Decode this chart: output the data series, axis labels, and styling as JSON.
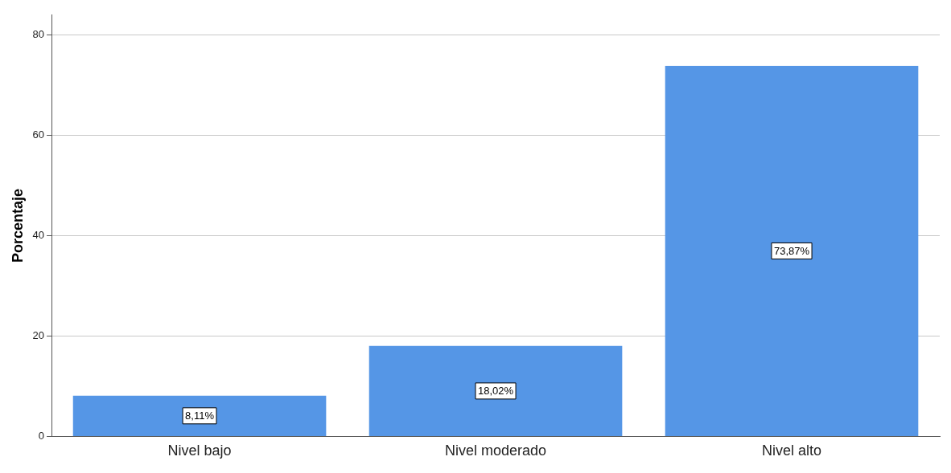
{
  "chart_data": {
    "type": "bar",
    "ylabel": "Porcentaje",
    "categories": [
      "Nivel bajo",
      "Nivel moderado",
      "Nivel alto"
    ],
    "values": [
      8.11,
      18.02,
      73.87
    ],
    "value_labels": [
      "8,11%",
      "18,02%",
      "73,87%"
    ],
    "color": "#5596e6",
    "ylim": [
      0,
      84
    ],
    "yticks": [
      0,
      20,
      40,
      60,
      80
    ],
    "grid": "y",
    "legend": false
  }
}
